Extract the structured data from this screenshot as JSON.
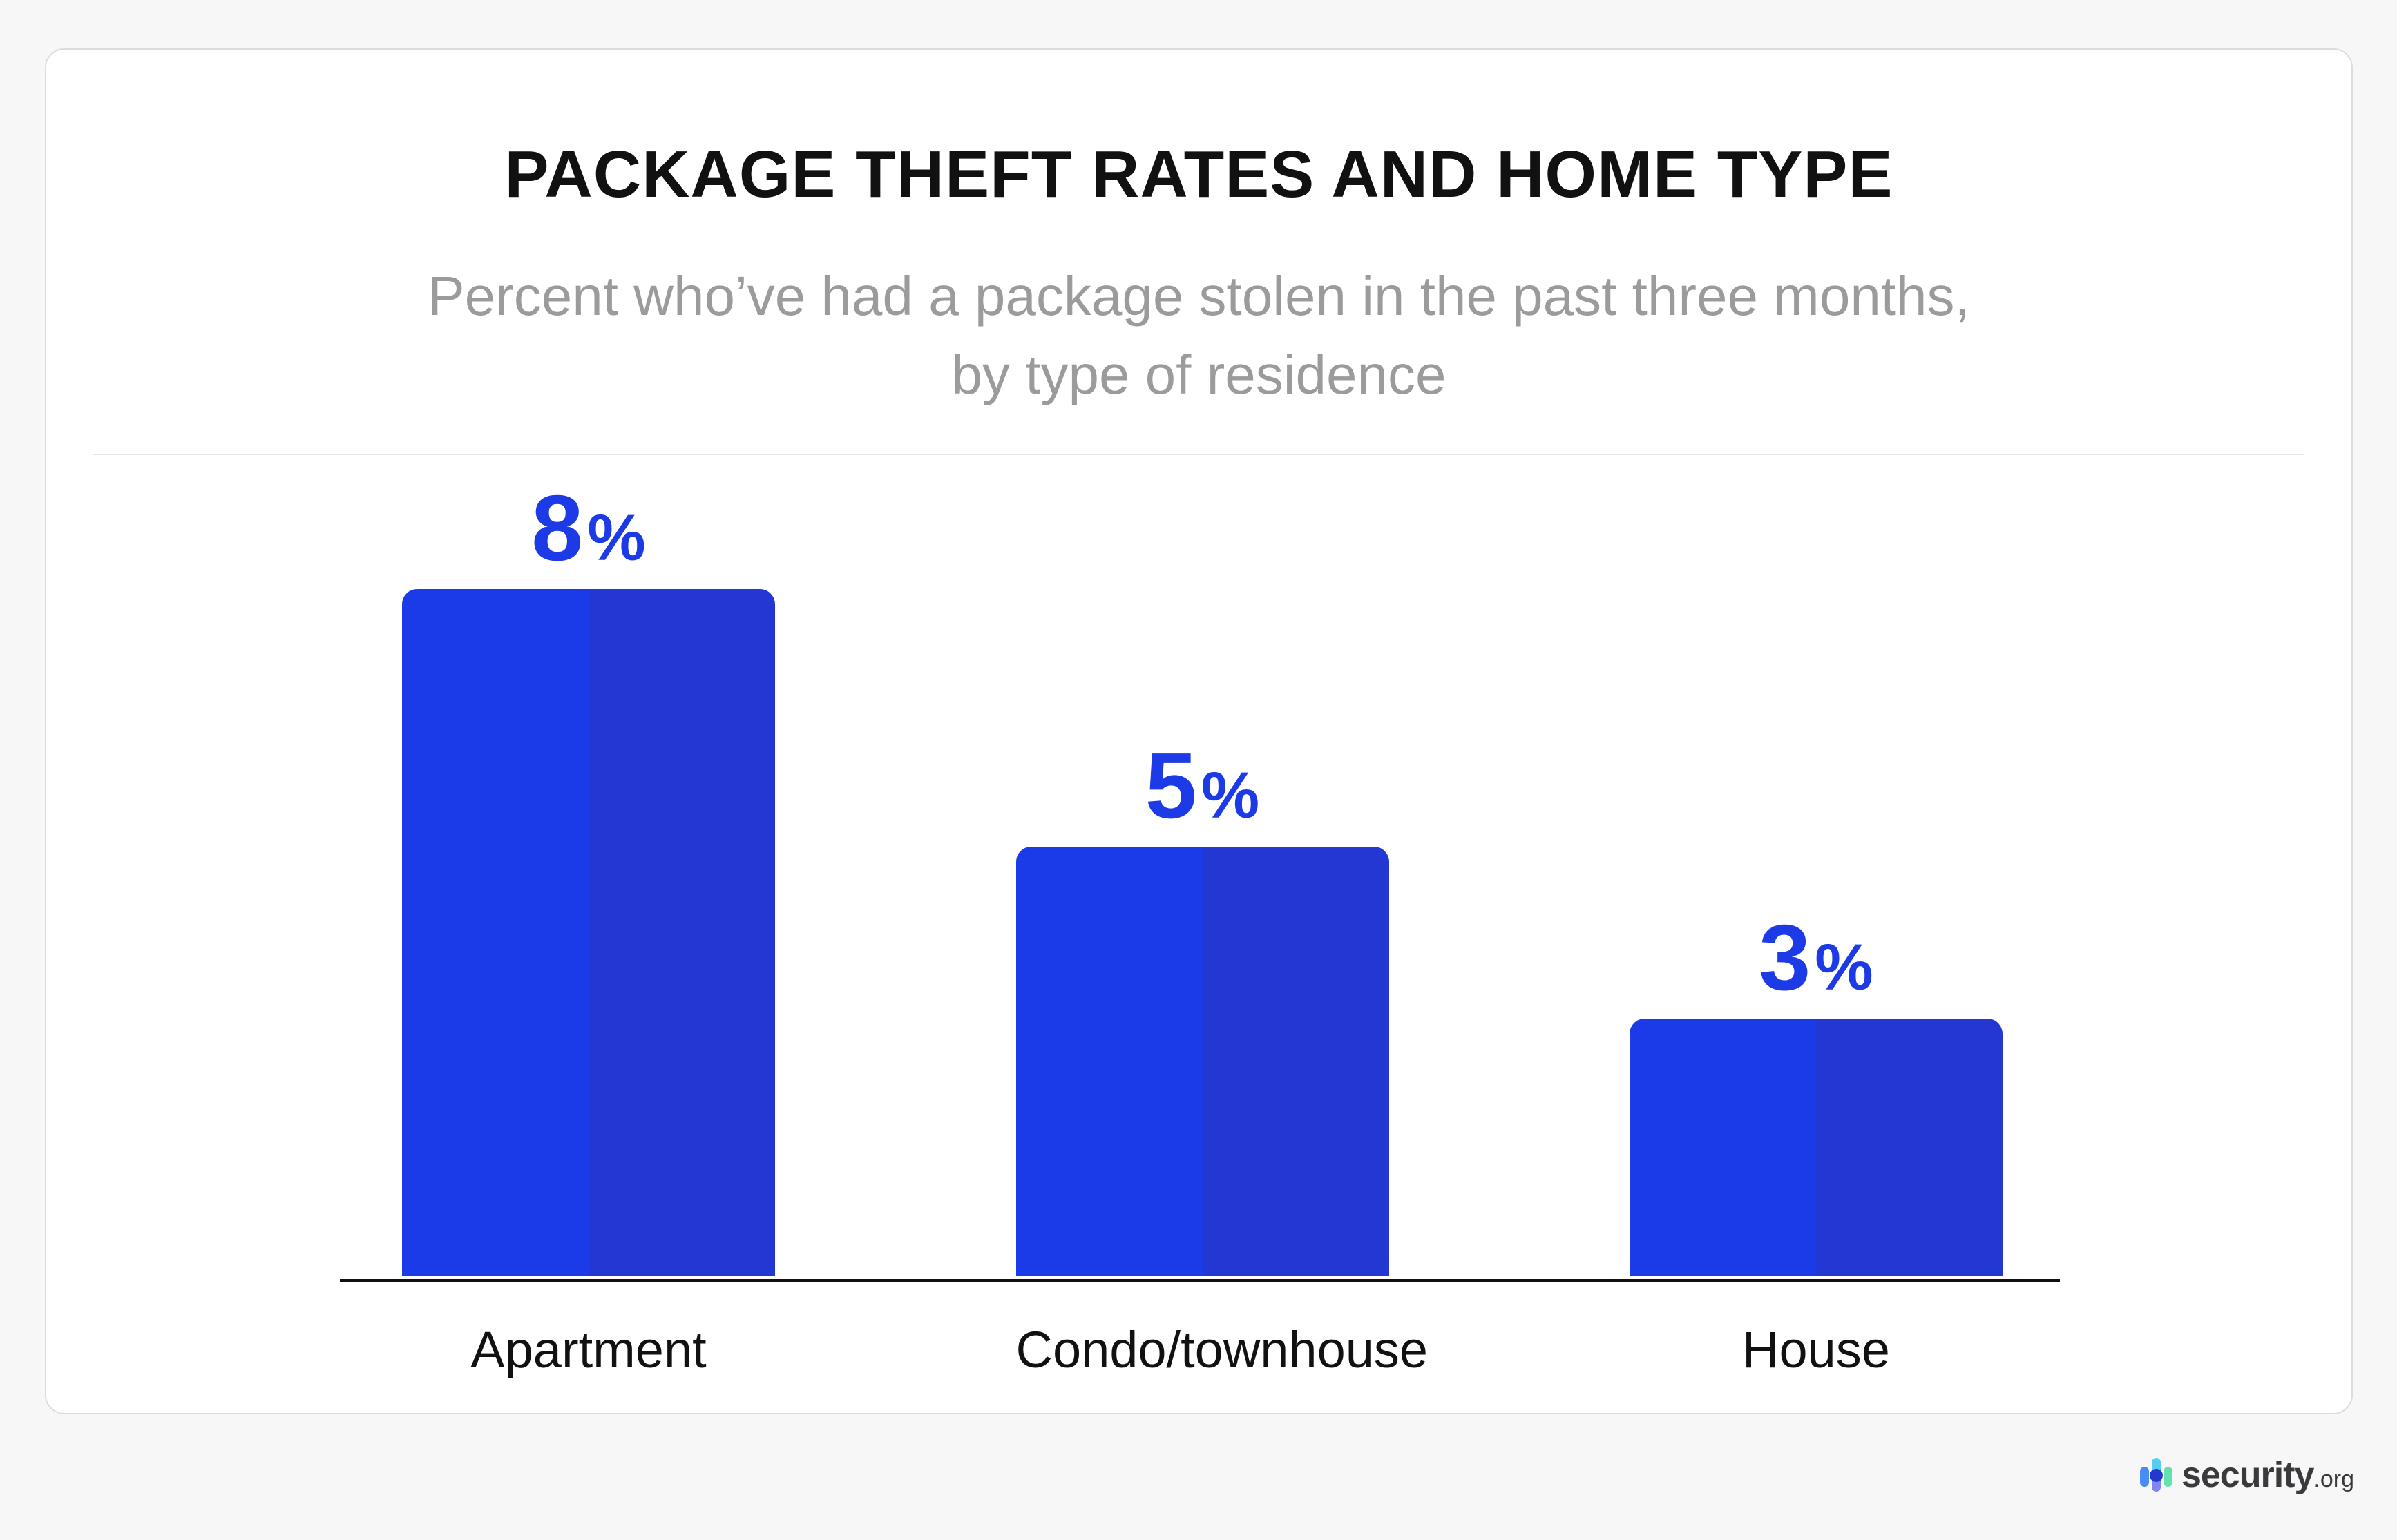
{
  "header": {
    "title": "PACKAGE THEFT RATES AND HOME TYPE",
    "subtitle_line1": "Percent who’ve had a package stolen in the past three months,",
    "subtitle_line2": "by type of residence"
  },
  "chart_data": {
    "type": "bar",
    "categories": [
      "Apartment",
      "Condo/townhouse",
      "House"
    ],
    "values": [
      8,
      5,
      3
    ],
    "value_labels": [
      "8%",
      "5%",
      "3%"
    ],
    "unit": "%",
    "title": "PACKAGE THEFT RATES AND HOME TYPE",
    "xlabel": "",
    "ylabel": "",
    "ylim": [
      0,
      8
    ],
    "grid": false,
    "legend": false,
    "colors": {
      "bar_left_half": "#1b3be9",
      "bar_right_half": "#2337d3",
      "value_label": "#1c3ae6",
      "axis": "#111111",
      "category_label": "#111111",
      "title": "#111111",
      "subtitle": "#9b9b9b"
    }
  },
  "branding": {
    "logo_name": "security",
    "logo_tld": ".org",
    "icon_colors": {
      "left_pill": "#4a8cf5",
      "middle_pill_top": "#57cdf3",
      "middle_pill_bottom": "#8284f1",
      "center_dot": "#2339cc",
      "right_pill": "#62e2ac"
    },
    "text_color": "#3a3a3d"
  }
}
